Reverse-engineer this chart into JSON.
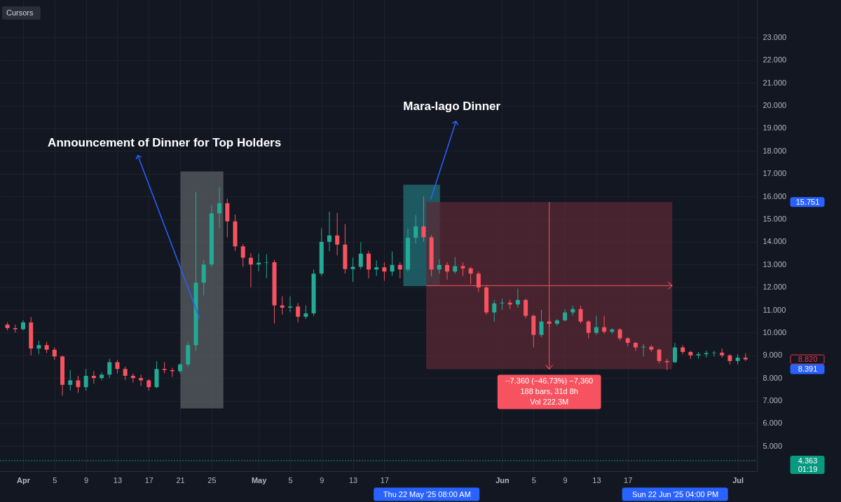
{
  "chart_data": {
    "type": "candlestick",
    "x": [
      "2025-03-30",
      "2025-03-31",
      "2025-04-01",
      "2025-04-02",
      "2025-04-03",
      "2025-04-04",
      "2025-04-05",
      "2025-04-06",
      "2025-04-07",
      "2025-04-08",
      "2025-04-09",
      "2025-04-10",
      "2025-04-11",
      "2025-04-12",
      "2025-04-13",
      "2025-04-14",
      "2025-04-15",
      "2025-04-16",
      "2025-04-17",
      "2025-04-18",
      "2025-04-19",
      "2025-04-20",
      "2025-04-21",
      "2025-04-22",
      "2025-04-23",
      "2025-04-24",
      "2025-04-25",
      "2025-04-26",
      "2025-04-27",
      "2025-04-28",
      "2025-04-29",
      "2025-04-30",
      "2025-05-01",
      "2025-05-02",
      "2025-05-03",
      "2025-05-04",
      "2025-05-05",
      "2025-05-06",
      "2025-05-07",
      "2025-05-08",
      "2025-05-09",
      "2025-05-10",
      "2025-05-11",
      "2025-05-12",
      "2025-05-13",
      "2025-05-14",
      "2025-05-15",
      "2025-05-16",
      "2025-05-17",
      "2025-05-18",
      "2025-05-19",
      "2025-05-20",
      "2025-05-21",
      "2025-05-22",
      "2025-05-23",
      "2025-05-24",
      "2025-05-25",
      "2025-05-26",
      "2025-05-27",
      "2025-05-28",
      "2025-05-29",
      "2025-05-30",
      "2025-05-31",
      "2025-06-01",
      "2025-06-02",
      "2025-06-03",
      "2025-06-04",
      "2025-06-05",
      "2025-06-06",
      "2025-06-07",
      "2025-06-08",
      "2025-06-09",
      "2025-06-10",
      "2025-06-11",
      "2025-06-12",
      "2025-06-13",
      "2025-06-14",
      "2025-06-15",
      "2025-06-16",
      "2025-06-17",
      "2025-06-18",
      "2025-06-19",
      "2025-06-20",
      "2025-06-21",
      "2025-06-22",
      "2025-06-23",
      "2025-06-24",
      "2025-06-25",
      "2025-06-26",
      "2025-06-27",
      "2025-06-28",
      "2025-06-29",
      "2025-06-30",
      "2025-07-01",
      "2025-07-02"
    ],
    "ohlc": [
      [
        10.35,
        10.45,
        10.1,
        10.2
      ],
      [
        10.2,
        10.35,
        10.0,
        10.15
      ],
      [
        10.15,
        10.55,
        10.1,
        10.45
      ],
      [
        10.45,
        10.69,
        9.0,
        9.3
      ],
      [
        9.3,
        9.65,
        9.05,
        9.45
      ],
      [
        9.45,
        9.6,
        9.1,
        9.25
      ],
      [
        9.25,
        9.35,
        8.8,
        8.95
      ],
      [
        8.95,
        9.0,
        7.22,
        7.7
      ],
      [
        7.7,
        8.35,
        7.45,
        7.9
      ],
      [
        7.9,
        8.1,
        7.35,
        7.6
      ],
      [
        7.6,
        8.4,
        7.45,
        8.1
      ],
      [
        8.1,
        8.3,
        7.75,
        8.0
      ],
      [
        8.0,
        8.25,
        7.9,
        8.15
      ],
      [
        8.15,
        8.85,
        8.0,
        8.7
      ],
      [
        8.7,
        8.8,
        8.2,
        8.4
      ],
      [
        8.4,
        8.5,
        7.9,
        8.1
      ],
      [
        8.1,
        8.2,
        7.8,
        8.0
      ],
      [
        8.0,
        8.15,
        7.65,
        7.9
      ],
      [
        7.9,
        7.95,
        7.45,
        7.6
      ],
      [
        7.6,
        8.75,
        7.55,
        8.4
      ],
      [
        8.4,
        8.7,
        8.2,
        8.35
      ],
      [
        8.35,
        8.45,
        8.05,
        8.3
      ],
      [
        8.3,
        8.65,
        8.2,
        8.6
      ],
      [
        8.6,
        9.6,
        8.5,
        9.45
      ],
      [
        9.45,
        16.2,
        9.2,
        12.2
      ],
      [
        12.2,
        13.2,
        11.64,
        13.0
      ],
      [
        13.0,
        15.6,
        12.9,
        15.25
      ],
      [
        15.25,
        16.4,
        14.6,
        15.7
      ],
      [
        15.7,
        15.9,
        14.2,
        14.9
      ],
      [
        14.9,
        15.2,
        13.6,
        13.8
      ],
      [
        13.8,
        13.9,
        12.9,
        13.3
      ],
      [
        13.3,
        13.5,
        12.0,
        13.0
      ],
      [
        13.0,
        13.48,
        12.7,
        13.08
      ],
      [
        13.08,
        13.45,
        12.4,
        13.1
      ],
      [
        13.1,
        13.2,
        10.4,
        11.2
      ],
      [
        11.2,
        11.6,
        10.8,
        11.1
      ],
      [
        11.1,
        11.6,
        10.9,
        11.15
      ],
      [
        11.15,
        11.3,
        10.45,
        10.7
      ],
      [
        10.7,
        11.2,
        10.6,
        10.85
      ],
      [
        10.85,
        12.78,
        10.74,
        12.6
      ],
      [
        12.6,
        14.6,
        12.5,
        14.0
      ],
      [
        14.0,
        15.33,
        13.58,
        14.28
      ],
      [
        14.28,
        15.27,
        13.4,
        13.88
      ],
      [
        13.88,
        14.78,
        12.6,
        12.8
      ],
      [
        12.8,
        13.3,
        12.24,
        12.9
      ],
      [
        12.9,
        13.98,
        12.8,
        13.48
      ],
      [
        13.48,
        13.6,
        12.39,
        12.78
      ],
      [
        12.78,
        13.18,
        12.5,
        12.88
      ],
      [
        12.88,
        13.1,
        12.29,
        12.69
      ],
      [
        12.69,
        13.58,
        12.5,
        12.98
      ],
      [
        12.98,
        13.1,
        12.39,
        12.78
      ],
      [
        12.78,
        14.58,
        12.7,
        14.18
      ],
      [
        14.18,
        15.18,
        13.93,
        14.68
      ],
      [
        14.68,
        16.0,
        14.0,
        14.2
      ],
      [
        14.2,
        14.3,
        12.48,
        12.78
      ],
      [
        12.78,
        13.23,
        12.6,
        12.98
      ],
      [
        12.98,
        13.1,
        12.34,
        12.69
      ],
      [
        12.69,
        13.33,
        12.6,
        12.93
      ],
      [
        12.93,
        13.1,
        12.5,
        12.83
      ],
      [
        12.83,
        12.9,
        12.14,
        12.6
      ],
      [
        12.6,
        12.7,
        11.79,
        11.99
      ],
      [
        11.99,
        12.1,
        10.79,
        10.89
      ],
      [
        10.89,
        11.44,
        10.49,
        11.29
      ],
      [
        11.29,
        11.49,
        11.0,
        11.32
      ],
      [
        11.32,
        11.45,
        11.04,
        11.24
      ],
      [
        11.24,
        11.94,
        11.1,
        11.44
      ],
      [
        11.44,
        11.5,
        10.64,
        10.74
      ],
      [
        10.74,
        10.8,
        9.35,
        9.9
      ],
      [
        9.9,
        11.0,
        9.8,
        10.49
      ],
      [
        10.49,
        10.6,
        10.24,
        10.39
      ],
      [
        10.39,
        10.6,
        10.3,
        10.54
      ],
      [
        10.54,
        11.04,
        10.5,
        10.89
      ],
      [
        10.89,
        11.19,
        10.75,
        11.04
      ],
      [
        11.04,
        11.19,
        10.4,
        10.49
      ],
      [
        10.49,
        10.55,
        9.75,
        9.99
      ],
      [
        9.99,
        10.74,
        9.9,
        10.24
      ],
      [
        10.24,
        10.74,
        9.95,
        10.04
      ],
      [
        10.04,
        10.2,
        9.95,
        10.14
      ],
      [
        10.14,
        10.2,
        9.65,
        9.75
      ],
      [
        9.75,
        9.8,
        9.4,
        9.55
      ],
      [
        9.55,
        9.6,
        9.2,
        9.35
      ],
      [
        9.35,
        9.5,
        8.95,
        9.38
      ],
      [
        9.38,
        9.45,
        9.15,
        9.25
      ],
      [
        9.25,
        9.3,
        8.65,
        8.75
      ],
      [
        8.75,
        8.85,
        8.35,
        8.7
      ],
      [
        8.7,
        9.55,
        8.65,
        9.35
      ],
      [
        9.35,
        9.45,
        9.05,
        9.15
      ],
      [
        9.15,
        9.2,
        8.85,
        9.0
      ],
      [
        9.0,
        9.15,
        8.85,
        9.05
      ],
      [
        9.05,
        9.2,
        8.9,
        9.1
      ],
      [
        9.1,
        9.2,
        8.95,
        9.12
      ],
      [
        9.12,
        9.3,
        8.9,
        9.0
      ],
      [
        9.0,
        9.05,
        8.6,
        8.75
      ],
      [
        8.75,
        9.05,
        8.6,
        8.9
      ],
      [
        8.9,
        9.1,
        8.75,
        8.82
      ]
    ],
    "colors": [
      "#f7525f",
      "#f7525f",
      "#22ab94",
      "#f7525f",
      "#22ab94",
      "#f7525f",
      "#f7525f",
      "#f7525f",
      "#22ab94",
      "#f7525f",
      "#22ab94",
      "#f7525f",
      "#22ab94",
      "#22ab94",
      "#f7525f",
      "#f7525f",
      "#f7525f",
      "#f7525f",
      "#f7525f",
      "#22ab94",
      "#f7525f",
      "#f7525f",
      "#22ab94",
      "#22ab94",
      "#22ab94",
      "#22ab94",
      "#22ab94",
      "#22ab94",
      "#f7525f",
      "#f7525f",
      "#f7525f",
      "#f7525f",
      "#22ab94",
      "#22ab94",
      "#f7525f",
      "#f7525f",
      "#22ab94",
      "#f7525f",
      "#22ab94",
      "#22ab94",
      "#22ab94",
      "#22ab94",
      "#f7525f",
      "#f7525f",
      "#22ab94",
      "#22ab94",
      "#f7525f",
      "#22ab94",
      "#f7525f",
      "#22ab94",
      "#f7525f",
      "#22ab94",
      "#22ab94",
      "#f7525f",
      "#f7525f",
      "#22ab94",
      "#f7525f",
      "#22ab94",
      "#f7525f",
      "#f7525f",
      "#f7525f",
      "#f7525f",
      "#22ab94",
      "#22ab94",
      "#f7525f",
      "#22ab94",
      "#f7525f",
      "#f7525f",
      "#22ab94",
      "#f7525f",
      "#22ab94",
      "#22ab94",
      "#22ab94",
      "#f7525f",
      "#f7525f",
      "#22ab94",
      "#f7525f",
      "#22ab94",
      "#f7525f",
      "#f7525f",
      "#f7525f",
      "#22ab94",
      "#f7525f",
      "#f7525f",
      "#f7525f",
      "#22ab94",
      "#f7525f",
      "#f7525f",
      "#22ab94",
      "#22ab94",
      "#22ab94",
      "#f7525f",
      "#f7525f",
      "#22ab94",
      "#f7525f"
    ],
    "xlim": [
      "2025-03-29T12:00",
      "2025-07-03T00:00"
    ],
    "xticks": [
      {
        "value": "2025-04-01",
        "label": "Apr"
      },
      {
        "value": "2025-04-05",
        "label": "5"
      },
      {
        "value": "2025-04-09",
        "label": "9"
      },
      {
        "value": "2025-04-13",
        "label": "13"
      },
      {
        "value": "2025-04-17",
        "label": "17"
      },
      {
        "value": "2025-04-21",
        "label": "21"
      },
      {
        "value": "2025-04-25",
        "label": "25"
      },
      {
        "value": "2025-05-01",
        "label": "May"
      },
      {
        "value": "2025-05-05",
        "label": "5"
      },
      {
        "value": "2025-05-09",
        "label": "9"
      },
      {
        "value": "2025-05-13",
        "label": "13"
      },
      {
        "value": "2025-05-17",
        "label": "17"
      },
      {
        "value": "2025-06-01",
        "label": "Jun"
      },
      {
        "value": "2025-06-05",
        "label": "5"
      },
      {
        "value": "2025-06-09",
        "label": "9"
      },
      {
        "value": "2025-06-13",
        "label": "13"
      },
      {
        "value": "2025-06-17",
        "label": "17"
      },
      {
        "value": "2025-07-01",
        "label": "Jul"
      }
    ],
    "x2lim": [
      "2025-03-29T12:00",
      "2025-07-03T00:00"
    ],
    "x2ticks": [
      {
        "value": "2025-05-22T08:00",
        "label": "Thu 22 May '25 08:00 AM"
      },
      {
        "value": "2025-06-22T16:00",
        "label": "Sun 22 Jun '25 04:00 PM"
      }
    ],
    "ylim": [
      3.9,
      24.65
    ],
    "yticks": [
      {
        "value": 5,
        "label": "5.000"
      },
      {
        "value": 6,
        "label": "6.000"
      },
      {
        "value": 7,
        "label": "7.000"
      },
      {
        "value": 8,
        "label": "8.000"
      },
      {
        "value": 9,
        "label": "9.000"
      },
      {
        "value": 10,
        "label": "10.000"
      },
      {
        "value": 11,
        "label": "11.000"
      },
      {
        "value": 12,
        "label": "12.000"
      },
      {
        "value": 13,
        "label": "13.000"
      },
      {
        "value": 14,
        "label": "14.000"
      },
      {
        "value": 15,
        "label": "15.000"
      },
      {
        "value": 16,
        "label": "16.000"
      },
      {
        "value": 17,
        "label": "17.000"
      },
      {
        "value": 18,
        "label": "18.000"
      },
      {
        "value": 19,
        "label": "19.000"
      },
      {
        "value": 20,
        "label": "20.000"
      },
      {
        "value": 21,
        "label": "21.000"
      },
      {
        "value": 22,
        "label": "22.000"
      },
      {
        "value": 23,
        "label": "23.000"
      }
    ],
    "y2lim": [
      3.9,
      24.65
    ],
    "y2ticks": [
      15.751,
      {
        "value": 8.82,
        "label": "8.820"
      },
      8.391,
      {
        "value": 4.363,
        "label": "4.363\n01:19"
      }
    ],
    "grid": true,
    "bands": [
      {
        "axis": "x",
        "from": "2025-04-21T01:00",
        "to": "2025-04-26T12:00",
        "color": "#5a5d63"
      },
      {
        "axis": "x",
        "from": "2025-05-19T10:00",
        "to": "2025-05-24T02:00",
        "color": "#237078"
      },
      {
        "axis": "x",
        "from": "2025-05-22T08:00",
        "to": "2025-06-22T16:00",
        "color": "#5a2834",
        "label": "−7.360 (−46.73%) −7,360\n188 bars, 31d 8h\nVol 222.3M"
      }
    ],
    "ref_lines": [
      {
        "axis": "y",
        "value": 4.363,
        "color": "#089981",
        "line_style": "dotted"
      },
      {
        "axis": "y",
        "value": 12.071,
        "color": "#f7525f"
      },
      {
        "axis": "x",
        "value": "2025-06-07T00:00",
        "color": "#f7525f"
      }
    ],
    "annotations": [
      "Cursors",
      {
        "text": "Announcement of Dinner for Top Holders",
        "x": "2025-04-23T11:00",
        "y": 10.64
      },
      {
        "text": "Mara-lago Dinner",
        "x": "2025-05-22T22:00",
        "y": 15.88
      }
    ]
  }
}
